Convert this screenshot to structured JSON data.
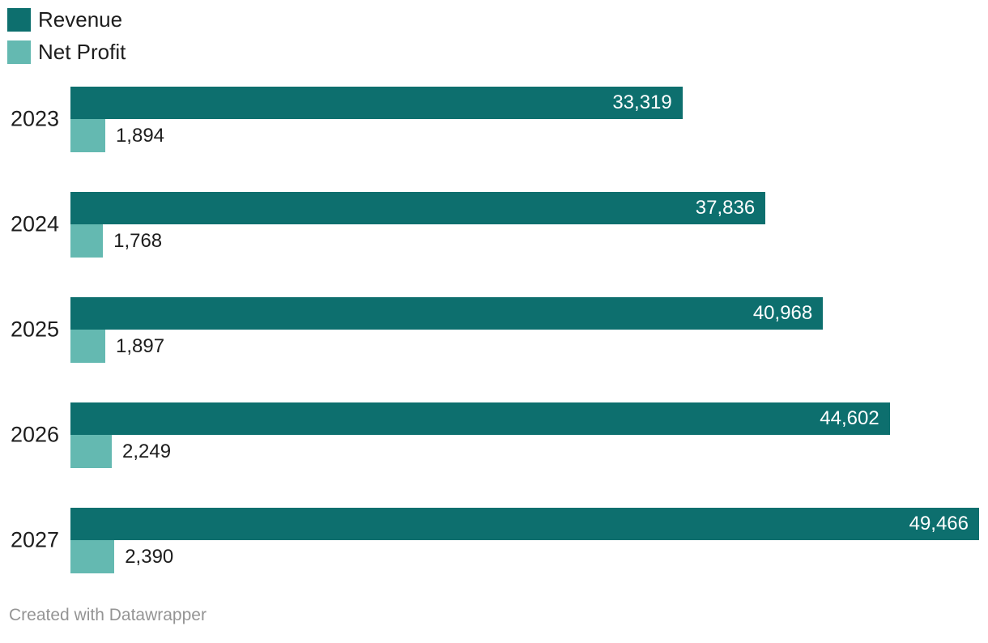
{
  "chart_data": {
    "type": "bar",
    "orientation": "horizontal",
    "title": "",
    "xlabel": "",
    "ylabel": "",
    "categories": [
      "2023",
      "2024",
      "2025",
      "2026",
      "2027"
    ],
    "series": [
      {
        "name": "Revenue",
        "color": "#0d6f6e",
        "values": [
          33319,
          37836,
          40968,
          44602,
          49466
        ],
        "labels": [
          "33,319",
          "37,836",
          "40,968",
          "44,602",
          "49,466"
        ],
        "label_position": "inside-end",
        "label_color": "#ffffff"
      },
      {
        "name": "Net Profit",
        "color": "#64b9b1",
        "values": [
          1894,
          1768,
          1897,
          2249,
          2390
        ],
        "labels": [
          "1,894",
          "1,768",
          "1,897",
          "2,249",
          "2,390"
        ],
        "label_position": "outside-end",
        "label_color": "#1d1d1d"
      }
    ],
    "xlim": [
      0,
      49466
    ],
    "grid": false,
    "legend_position": "top-left"
  },
  "legend": {
    "items": [
      {
        "label": "Revenue",
        "color": "#0d6f6e"
      },
      {
        "label": "Net Profit",
        "color": "#64b9b1"
      }
    ]
  },
  "footer": {
    "attribution": "Created with Datawrapper"
  },
  "colors": {
    "revenue_bar": "#0d6f6e",
    "net_profit_bar": "#64b9b1",
    "text": "#1d1d1d",
    "bar_label_inside": "#ffffff",
    "attribution_text": "#949494",
    "background": "#ffffff"
  }
}
